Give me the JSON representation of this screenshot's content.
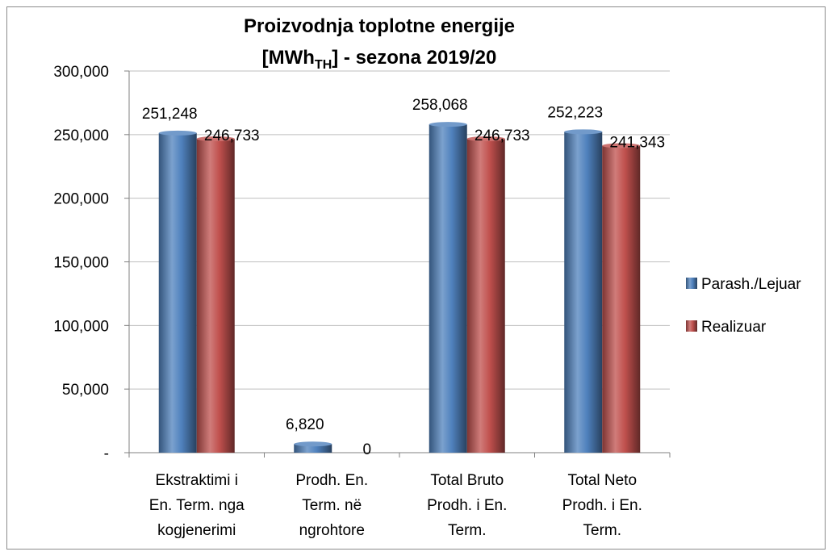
{
  "chart_data": {
    "type": "bar",
    "title": {
      "line1": "Proizvodnja toplotne energije",
      "line2": "[MWh",
      "subscript": "TH",
      "line2_end": "] - sezona 2019/20"
    },
    "categories": [
      [
        "Ekstraktimi i",
        "En. Term. nga",
        "kogjenerimi"
      ],
      [
        "Prodh. En.",
        "Term. në",
        "ngrohtore"
      ],
      [
        "Total Bruto",
        "Prodh. i En.",
        "Term."
      ],
      [
        "Total Neto",
        "Prodh. i En.",
        "Term."
      ]
    ],
    "series": [
      {
        "name": "Parash./Lejuar",
        "color": "#4f81bd",
        "values": [
          251248,
          6820,
          258068,
          252223
        ],
        "value_labels": [
          "251,248",
          "6,820",
          "258,068",
          "252,223"
        ]
      },
      {
        "name": "Realizuar",
        "color": "#c0504d",
        "values": [
          246733,
          0,
          246733,
          241343
        ],
        "value_labels": [
          "246,733",
          "0",
          "246,733",
          "241,343"
        ]
      }
    ],
    "ylim": [
      0,
      300000
    ],
    "yticks": [
      {
        "value": 0,
        "label": "-"
      },
      {
        "value": 50000,
        "label": "50,000"
      },
      {
        "value": 100000,
        "label": "100,000"
      },
      {
        "value": 150000,
        "label": "150,000"
      },
      {
        "value": 200000,
        "label": "200,000"
      },
      {
        "value": 250000,
        "label": "250,000"
      },
      {
        "value": 300000,
        "label": "300,000"
      }
    ],
    "grid": true,
    "legend": "right"
  }
}
